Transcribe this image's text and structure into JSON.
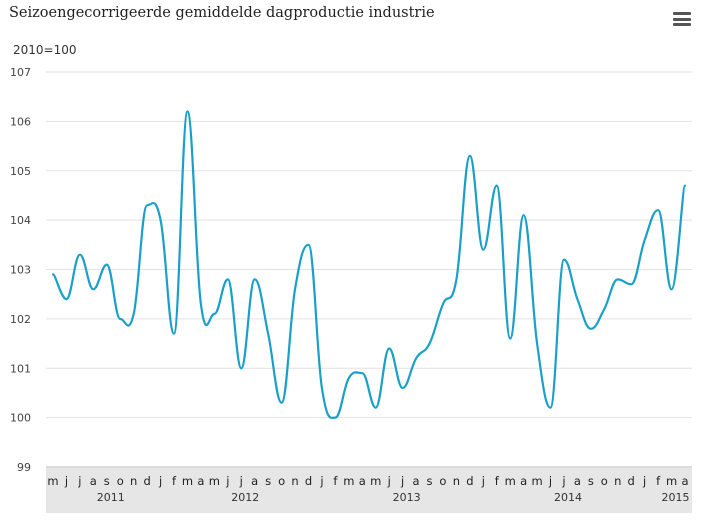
{
  "header": {
    "title": "Seizoengecorrigeerde gemiddelde dagproductie industrie",
    "unit_label": "2010=100"
  },
  "menu_icon": "hamburger-menu-icon",
  "chart_data": {
    "type": "line",
    "title": "Seizoengecorrigeerde gemiddelde dagproductie industrie",
    "ylabel": "2010=100",
    "xlabel": "",
    "ylim": [
      99,
      107
    ],
    "yticks": [
      99,
      100,
      101,
      102,
      103,
      104,
      105,
      106,
      107
    ],
    "grid": true,
    "legend": "none",
    "line_color": "#1aa0c8",
    "month_labels": [
      "m",
      "j",
      "j",
      "a",
      "s",
      "o",
      "n",
      "d",
      "j",
      "f",
      "m",
      "a",
      "m",
      "j",
      "j",
      "a",
      "s",
      "o",
      "n",
      "d",
      "j",
      "f",
      "m",
      "a",
      "m",
      "j",
      "j",
      "a",
      "s",
      "o",
      "n",
      "d",
      "j",
      "f",
      "m",
      "a",
      "m",
      "j",
      "j",
      "a",
      "s",
      "o",
      "n",
      "d",
      "j",
      "f",
      "m",
      "a"
    ],
    "year_labels": [
      {
        "label": "2011",
        "index": 4
      },
      {
        "label": "2012",
        "index": 14
      },
      {
        "label": "2013",
        "index": 26
      },
      {
        "label": "2014",
        "index": 38
      },
      {
        "label": "2015",
        "index": 46
      }
    ],
    "x": [
      "2011-05",
      "2011-06",
      "2011-07",
      "2011-08",
      "2011-09",
      "2011-10",
      "2011-11",
      "2011-12",
      "2012-01",
      "2012-02",
      "2012-03",
      "2012-04",
      "2012-05",
      "2012-06",
      "2012-07",
      "2012-08",
      "2012-09",
      "2012-10",
      "2012-11",
      "2012-12",
      "2013-01",
      "2013-02",
      "2013-03",
      "2013-04",
      "2013-05",
      "2013-06",
      "2013-07",
      "2013-08",
      "2013-09",
      "2013-10",
      "2013-11",
      "2013-12",
      "2014-01",
      "2014-02",
      "2014-03",
      "2014-04",
      "2014-05",
      "2014-06",
      "2014-07",
      "2014-08",
      "2014-09",
      "2014-10",
      "2014-11",
      "2014-12",
      "2015-01",
      "2015-02",
      "2015-03",
      "2015-04"
    ],
    "values": [
      102.9,
      102.4,
      103.3,
      102.6,
      103.1,
      102.0,
      102.1,
      104.3,
      104.0,
      101.7,
      106.2,
      102.3,
      102.1,
      102.8,
      101.0,
      102.8,
      101.7,
      100.3,
      102.6,
      103.5,
      100.6,
      100.0,
      100.8,
      100.9,
      100.2,
      101.4,
      100.6,
      101.2,
      101.5,
      102.3,
      102.8,
      105.3,
      103.4,
      104.7,
      101.6,
      104.1,
      101.5,
      100.2,
      103.2,
      102.4,
      101.8,
      102.2,
      102.8,
      102.7,
      103.6,
      104.2,
      102.6,
      104.7
    ]
  }
}
